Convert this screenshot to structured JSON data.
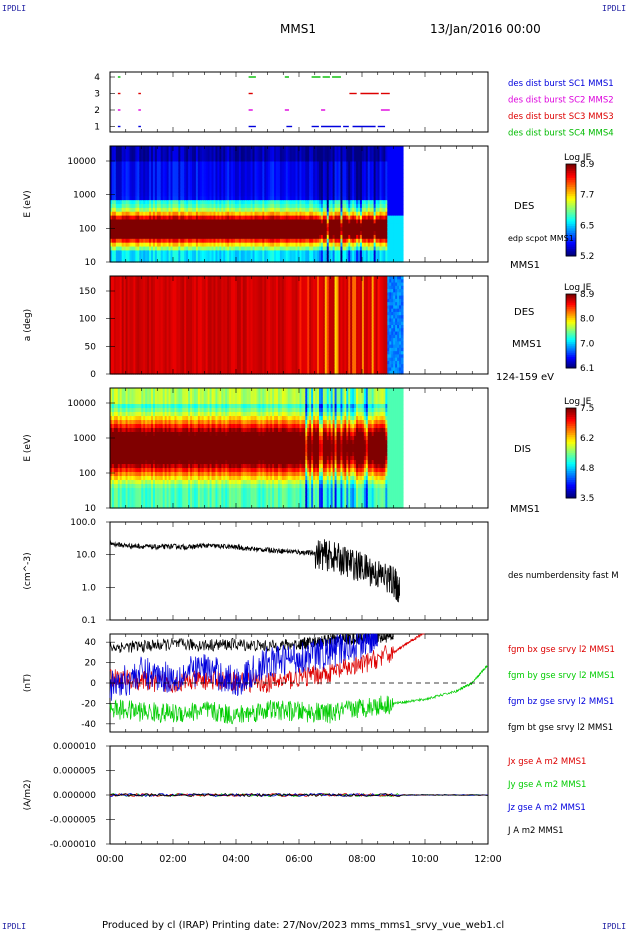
{
  "header": {
    "corner_left": "IPDLI",
    "corner_right": "IPDLI",
    "title": "MMS1",
    "date": "13/Jan/2016 00:00",
    "footer": "Produced by cl (IRAP)   Printing date: 27/Nov/2023   mms_mms1_srvy_vue_web1.cl",
    "footer_corner_left": "IPDLI",
    "footer_corner_right": "IPDLI"
  },
  "time_axis": {
    "ticks": [
      "00:00",
      "02:00",
      "04:00",
      "06:00",
      "08:00",
      "10:00",
      "12:00"
    ],
    "range_hours": [
      0,
      12
    ]
  },
  "chart_data": [
    {
      "type": "scatter",
      "panel": "burst-availability",
      "yticks": [
        "4",
        "3",
        "2",
        "1"
      ],
      "legend": [
        {
          "text": "des dist burst SC1 MMS1",
          "color": "#0000dd"
        },
        {
          "text": "des dist burst SC2 MMS2",
          "color": "#dd00dd"
        },
        {
          "text": "des dist burst SC3 MMS3",
          "color": "#dd0000"
        },
        {
          "text": "des dist burst SC4 MMS4",
          "color": "#00bb00"
        }
      ],
      "segments": [
        {
          "level": 4,
          "color": "#00bb00",
          "hours": [
            [
              0.25,
              0.3
            ],
            [
              4.4,
              4.6
            ],
            [
              5.55,
              5.65
            ],
            [
              6.4,
              6.65
            ],
            [
              6.75,
              6.95
            ],
            [
              7.05,
              7.3
            ]
          ]
        },
        {
          "level": 3,
          "color": "#dd0000",
          "hours": [
            [
              0.25,
              0.3
            ],
            [
              0.9,
              0.95
            ],
            [
              4.4,
              4.5
            ],
            [
              7.6,
              7.8
            ],
            [
              7.95,
              8.5
            ],
            [
              8.6,
              8.85
            ]
          ]
        },
        {
          "level": 2,
          "color": "#dd00dd",
          "hours": [
            [
              0.25,
              0.3
            ],
            [
              0.9,
              0.95
            ],
            [
              4.4,
              4.5
            ],
            [
              5.55,
              5.65
            ],
            [
              6.7,
              6.8
            ],
            [
              8.6,
              8.85
            ]
          ]
        },
        {
          "level": 1,
          "color": "#0000dd",
          "hours": [
            [
              0.25,
              0.3
            ],
            [
              0.9,
              0.95
            ],
            [
              4.4,
              4.6
            ],
            [
              5.6,
              5.75
            ],
            [
              6.4,
              6.6
            ],
            [
              6.7,
              7.3
            ],
            [
              7.4,
              7.55
            ],
            [
              7.7,
              8.4
            ],
            [
              8.5,
              8.7
            ]
          ]
        }
      ]
    },
    {
      "type": "heatmap",
      "panel": "des-energy",
      "ylabel": "E (eV)",
      "yticks": [
        "10000",
        "1000",
        "100",
        "10"
      ],
      "ylog": [
        10,
        30000
      ],
      "label": "DES",
      "label2": "edp scpot MMS1",
      "label3": "MMS1",
      "colorbar": {
        "title": "Log JE",
        "ticks": [
          "8.9",
          "7.7",
          "6.5",
          "5.2"
        ],
        "range": [
          5.2,
          8.9
        ]
      },
      "data_end_hours": 9.3,
      "description_peak_energy_ev": 150
    },
    {
      "type": "heatmap",
      "panel": "des-pitch-angle",
      "ylabel": "a (deg)",
      "yticks": [
        "150",
        "100",
        "50",
        "0"
      ],
      "ylim": [
        0,
        180
      ],
      "label": "DES",
      "label2": "MMS1",
      "label3": "124-159 eV",
      "colorbar": {
        "title": "Log JE",
        "ticks": [
          "8.9",
          "8.0",
          "7.0",
          "6.1"
        ],
        "range": [
          6.1,
          8.9
        ]
      },
      "data_end_hours": 9.3
    },
    {
      "type": "heatmap",
      "panel": "dis-energy",
      "ylabel": "E (eV)",
      "yticks": [
        "10000",
        "1000",
        "100",
        "10"
      ],
      "ylog": [
        10,
        30000
      ],
      "label": "DIS",
      "label3": "MMS1",
      "colorbar": {
        "title": "Log JE",
        "ticks": [
          "7.5",
          "6.2",
          "4.8",
          "3.5"
        ],
        "range": [
          3.5,
          7.5
        ]
      },
      "data_end_hours": 9.3
    },
    {
      "type": "line",
      "panel": "density",
      "ylabel": "(cm^-3)",
      "yticks": [
        "100.0",
        "10.0",
        "1.0",
        "0.1"
      ],
      "ylog": [
        0.1,
        100
      ],
      "legend": [
        {
          "text": "des numberdensity fast M",
          "color": "#000000"
        }
      ],
      "series": [
        {
          "color": "#000000",
          "x": [
            0.0,
            0.5,
            1.0,
            1.5,
            2.0,
            2.5,
            3.0,
            3.5,
            4.0,
            4.5,
            5.0,
            5.5,
            6.0,
            6.5,
            7.0,
            7.5,
            8.0,
            8.5,
            9.0,
            9.2
          ],
          "y": [
            22,
            19,
            18,
            17,
            18,
            17,
            19,
            18,
            17,
            15,
            14,
            13,
            12,
            11,
            9,
            6,
            4,
            2.5,
            1.5,
            0.7
          ]
        }
      ]
    },
    {
      "type": "line",
      "panel": "magnetic-field",
      "ylabel": "(nT)",
      "yticks": [
        "40",
        "20",
        "0",
        "-20",
        "-40"
      ],
      "ylim": [
        -48,
        48
      ],
      "legend": [
        {
          "text": "fgm bx gse srvy l2 MMS1",
          "color": "#dd0000"
        },
        {
          "text": "fgm by gse srvy l2 MMS1",
          "color": "#00cc00"
        },
        {
          "text": "fgm bz gse srvy l2 MMS1",
          "color": "#0000dd"
        },
        {
          "text": "fgm bt gse srvy l2 MMS1",
          "color": "#000000"
        }
      ],
      "series": [
        {
          "name": "fgm bt gse srvy l2 MMS1",
          "color": "#000000",
          "x": [
            0,
            1,
            2,
            3,
            4,
            5,
            6,
            6.5,
            7,
            7.5,
            8,
            8.5,
            9
          ],
          "y": [
            35,
            36,
            38,
            37,
            38,
            36,
            38,
            40,
            42,
            43,
            44,
            45,
            46
          ]
        },
        {
          "name": "fgm by gse srvy l2 MMS1",
          "color": "#00cc00",
          "x": [
            0,
            1,
            2,
            3,
            4,
            5,
            6,
            7,
            8,
            9,
            10,
            11,
            11.5,
            12
          ],
          "y": [
            -25,
            -28,
            -30,
            -27,
            -32,
            -26,
            -28,
            -30,
            -24,
            -20,
            -16,
            -8,
            0,
            18
          ]
        },
        {
          "name": "fgm bx gse srvy l2 MMS1",
          "color": "#dd0000",
          "x": [
            0,
            1,
            2,
            3,
            4,
            5,
            6,
            7,
            8,
            9,
            9.5,
            10
          ],
          "y": [
            5,
            2,
            0,
            3,
            2,
            0,
            5,
            10,
            18,
            30,
            40,
            50
          ]
        },
        {
          "name": "fgm bz gse srvy l2 MMS1",
          "color": "#0000dd",
          "x": [
            0,
            1,
            2,
            3,
            4,
            5,
            6,
            7,
            8,
            8.5
          ],
          "y": [
            -5,
            10,
            5,
            15,
            0,
            20,
            25,
            30,
            40,
            48
          ]
        }
      ],
      "zero_line": true
    },
    {
      "type": "line",
      "panel": "current-density",
      "ylabel": "(A/m2)",
      "yticks": [
        "0.000010",
        "0.000005",
        "0.000000",
        "-0.000005",
        "-0.000010"
      ],
      "ylim": [
        -1e-05,
        1e-05
      ],
      "legend": [
        {
          "text": "Jx gse A m2 MMS1",
          "color": "#dd0000"
        },
        {
          "text": "Jy gse A m2 MMS1",
          "color": "#00cc00"
        },
        {
          "text": "Jz gse A m2 MMS1",
          "color": "#0000dd"
        },
        {
          "text": "J A m2 MMS1",
          "color": "#000000"
        }
      ],
      "series": [
        {
          "name": "J A m2 MMS1",
          "color": "#000000",
          "x": [
            0,
            12
          ],
          "y": [
            0,
            0
          ]
        }
      ]
    }
  ]
}
